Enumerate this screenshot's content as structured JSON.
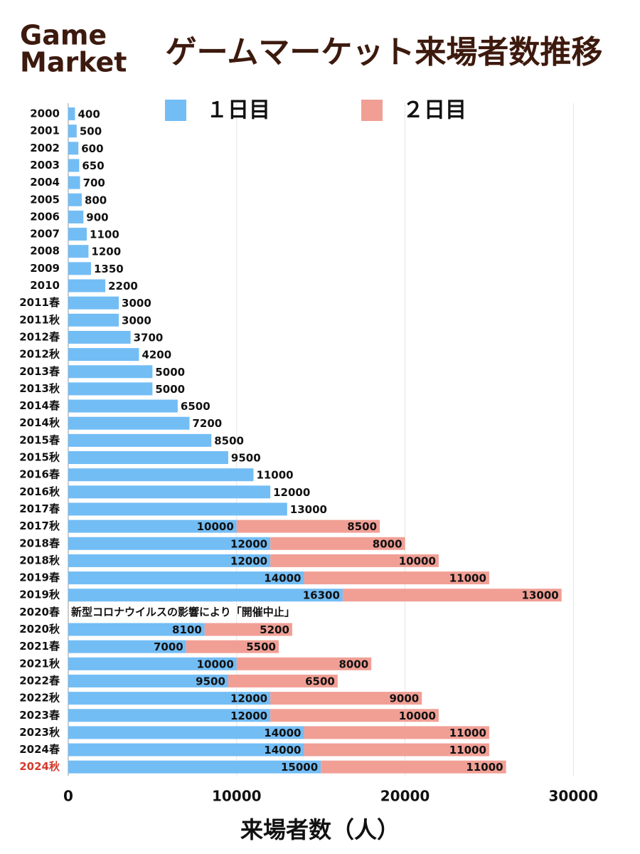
{
  "chart_data": {
    "type": "stacked_barh",
    "title": "ゲームマーケット来場者数推移",
    "logo": [
      "Game",
      "Market"
    ],
    "x_label": "来場者数（人）",
    "categories": [
      "2000",
      "2001",
      "2002",
      "2003",
      "2004",
      "2005",
      "2006",
      "2007",
      "2008",
      "2009",
      "2010",
      "2011春",
      "2011秋",
      "2012春",
      "2012秋",
      "2013春",
      "2013秋",
      "2014春",
      "2014秋",
      "2015春",
      "2015秋",
      "2016春",
      "2016秋",
      "2017春",
      "2017秋",
      "2018春",
      "2018秋",
      "2019春",
      "2019秋",
      "2020春",
      "2020秋",
      "2021春",
      "2021秋",
      "2022春",
      "2022秋",
      "2023春",
      "2023秋",
      "2024春",
      "2024秋"
    ],
    "series": [
      {
        "name": "１日目",
        "color": "#73bdf5",
        "values": [
          400,
          500,
          600,
          650,
          700,
          800,
          900,
          1100,
          1200,
          1350,
          2200,
          3000,
          3000,
          3700,
          4200,
          5000,
          5000,
          6500,
          7200,
          8500,
          9500,
          11000,
          12000,
          13000,
          10000,
          12000,
          12000,
          14000,
          16300,
          null,
          8100,
          7000,
          10000,
          9500,
          12000,
          12000,
          14000,
          14000,
          15000
        ]
      },
      {
        "name": "２日目",
        "color": "#f19f95",
        "values": [
          null,
          null,
          null,
          null,
          null,
          null,
          null,
          null,
          null,
          null,
          null,
          null,
          null,
          null,
          null,
          null,
          null,
          null,
          null,
          null,
          null,
          null,
          null,
          null,
          8500,
          8000,
          10000,
          11000,
          13000,
          null,
          5200,
          5500,
          8000,
          6500,
          9000,
          10000,
          11000,
          11000,
          11000
        ]
      }
    ],
    "annotations": [
      {
        "category": "2020春",
        "text": "新型コロナウイルスの影響により「開催中止」"
      }
    ],
    "highlight_category": "2024秋",
    "highlight_color": "#d33b2d",
    "title_color": "#3d1a0e",
    "xlim": [
      0,
      31000
    ],
    "xticks": [
      0,
      10000,
      20000,
      30000
    ],
    "grid": true
  }
}
